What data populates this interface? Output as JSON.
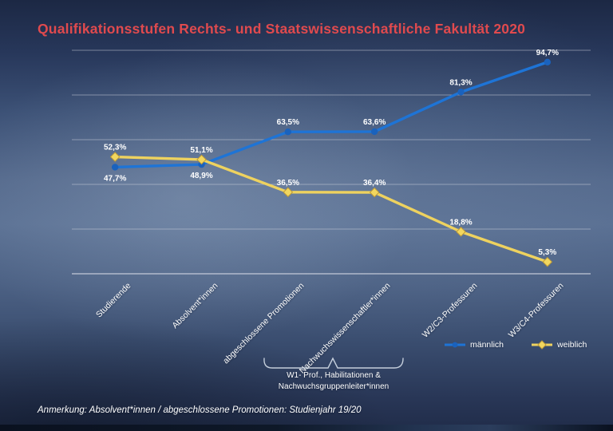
{
  "title": "Qualifikationsstufen Rechts- und Staatswissenschaftliche Fakultät 2020",
  "annotation": "Anmerkung: Absolvent*innen / abgeschlossene Promotionen: Studienjahr 19/20",
  "bracket_note": {
    "line1": "W1- Prof., Habilitationen &",
    "line2": "Nachwuchsgruppenleiter*innen"
  },
  "legend": [
    {
      "label": "männlich",
      "color": "#1e74d6",
      "marker": "circle"
    },
    {
      "label": "weiblich",
      "color": "#eed25f",
      "marker": "diamond"
    }
  ],
  "colors": {
    "title": "#e04a4e",
    "maennlich_line": "#1e74d6",
    "maennlich_marker": "#1a62bd",
    "weiblich_line": "#eed25f",
    "weiblich_marker_fill": "#f2d75f",
    "weiblich_marker_stroke": "#bd9a38",
    "grid": "rgba(205,210,220,0.5)",
    "axis": "rgba(215,220,230,0.7)",
    "label_text": "#ffffff"
  },
  "chart_data": {
    "type": "line",
    "categories": [
      "Studierende",
      "Absolvent*innen",
      "abgeschlossene Promotionen",
      "Nachwuchswissenschaftler*innen",
      "W2/C3-Professuren",
      "W3/C4-Professuren"
    ],
    "series": [
      {
        "name": "männlich",
        "color": "#1e74d6",
        "marker": "circle",
        "values": [
          47.7,
          48.9,
          63.5,
          63.6,
          81.3,
          94.7
        ],
        "labels": [
          "47,7%",
          "48,9%",
          "63,5%",
          "63,6%",
          "81,3%",
          "94,7%"
        ],
        "label_side": [
          "below",
          "below",
          "above",
          "above",
          "above",
          "above"
        ]
      },
      {
        "name": "weiblich",
        "color": "#eed25f",
        "marker": "diamond",
        "values": [
          52.3,
          51.1,
          36.5,
          36.4,
          18.8,
          5.3
        ],
        "labels": [
          "52,3%",
          "51,1%",
          "36,5%",
          "36,4%",
          "18,8%",
          "5,3%"
        ],
        "label_side": [
          "above",
          "above",
          "above",
          "above",
          "above",
          "above"
        ]
      }
    ],
    "ylim": [
      0,
      100
    ],
    "gridline_interval": 20,
    "grid": true,
    "legend_position": "bottom-right",
    "value_suffix": "%"
  }
}
